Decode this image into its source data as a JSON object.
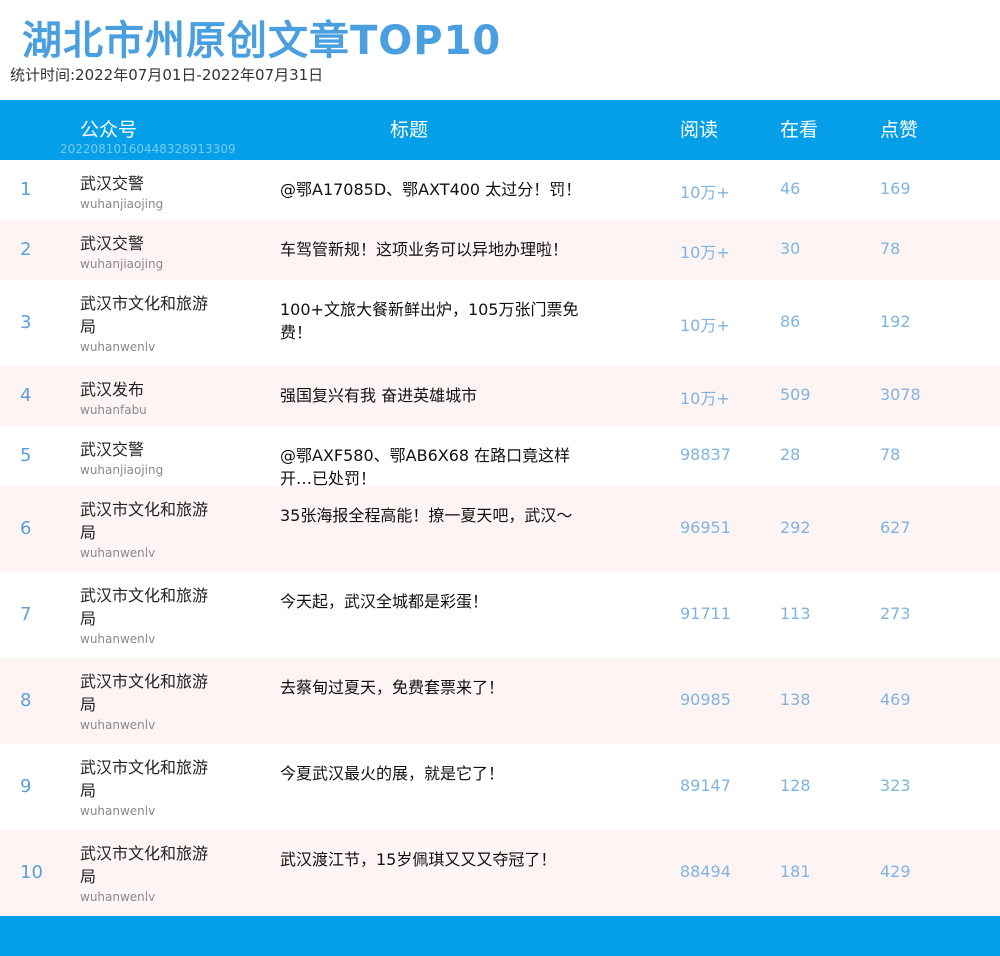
{
  "title": "湖北市州原创文章TOP10",
  "period": "统计时间:2022年07月01日-2022年07月31日",
  "header": {
    "account": "公众号",
    "article": "标题",
    "reads": "阅读",
    "watching": "在看",
    "likes": "点赞",
    "watermark": "20220810160448328913309"
  },
  "colors": {
    "header_bg": "#049fe8",
    "title": "#4a9fe0",
    "row_alt_bg": "#fff4f4",
    "numbers": "#7fb4e0"
  },
  "rows": [
    {
      "rank": "1",
      "account": "武汉交警",
      "account_id": "wuhanjiaojing",
      "article": "@鄂A17085D、鄂AXT400 太过分！罚！",
      "reads": "10万+",
      "watching": "46",
      "likes": "169"
    },
    {
      "rank": "2",
      "account": "武汉交警",
      "account_id": "wuhanjiaojing",
      "article": "车驾管新规！这项业务可以异地办理啦！",
      "reads": "10万+",
      "watching": "30",
      "likes": "78"
    },
    {
      "rank": "3",
      "account": "武汉市文化和旅游局",
      "account_id": "wuhanwenlv",
      "article": "100+文旅大餐新鲜出炉，105万张门票免费！",
      "reads": "10万+",
      "watching": "86",
      "likes": "192"
    },
    {
      "rank": "4",
      "account": "武汉发布",
      "account_id": "wuhanfabu",
      "article": "强国复兴有我 奋进英雄城市",
      "reads": "10万+",
      "watching": "509",
      "likes": "3078"
    },
    {
      "rank": "5",
      "account": "武汉交警",
      "account_id": "wuhanjiaojing",
      "article": "@鄂AXF580、鄂AB6X68 在路口竟这样开…已处罚！",
      "reads": "98837",
      "watching": "28",
      "likes": "78"
    },
    {
      "rank": "6",
      "account": "武汉市文化和旅游局",
      "account_id": "wuhanwenlv",
      "article": "35张海报全程高能！撩一夏天吧，武汉～",
      "reads": "96951",
      "watching": "292",
      "likes": "627"
    },
    {
      "rank": "7",
      "account": "武汉市文化和旅游局",
      "account_id": "wuhanwenlv",
      "article": "今天起，武汉全城都是彩蛋！",
      "reads": "91711",
      "watching": "113",
      "likes": "273"
    },
    {
      "rank": "8",
      "account": "武汉市文化和旅游局",
      "account_id": "wuhanwenlv",
      "article": "去蔡甸过夏天，免费套票来了！",
      "reads": "90985",
      "watching": "138",
      "likes": "469"
    },
    {
      "rank": "9",
      "account": "武汉市文化和旅游局",
      "account_id": "wuhanwenlv",
      "article": "今夏武汉最火的展，就是它了！",
      "reads": "89147",
      "watching": "128",
      "likes": "323"
    },
    {
      "rank": "10",
      "account": "武汉市文化和旅游局",
      "account_id": "wuhanwenlv",
      "article": "武汉渡江节，15岁佩琪又又又夺冠了！",
      "reads": "88494",
      "watching": "181",
      "likes": "429"
    }
  ]
}
